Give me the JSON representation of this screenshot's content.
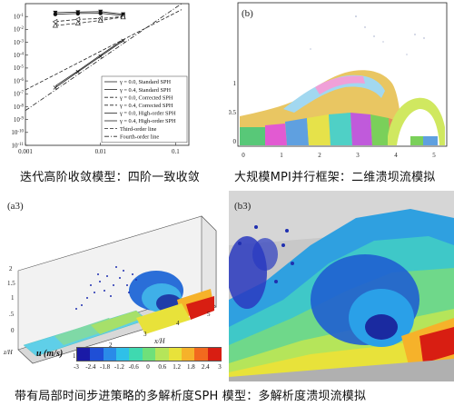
{
  "captions": {
    "top_left": "迭代高阶收敛模型：四阶一致收敛",
    "top_right": "大规模MPI并行框架：二维溃坝流模拟",
    "bottom": "带有局部时间步进策略的多解析度SPH 模型：多解析度溃坝流模拟"
  },
  "panels": {
    "b": {
      "label": "(b)",
      "x_ticks": [
        "0",
        "1",
        "2",
        "3",
        "4",
        "5"
      ],
      "y_ticks": [
        "0",
        "0.5",
        "1"
      ]
    },
    "a3": {
      "label": "(a3)",
      "y_ticks": [
        "0",
        ".5",
        "1",
        "1.5",
        "2"
      ],
      "x_ticks": [
        "1",
        "2",
        "3",
        "4",
        "5"
      ],
      "x_axis_label": "x/H",
      "z_axis_label": "z/H"
    },
    "b3": {
      "label": "(b3)"
    }
  },
  "colorbar": {
    "label": "u (m/s)",
    "ticks": [
      "-3",
      "-2.4",
      "-1.8",
      "-1.2",
      "-0.6",
      "0",
      "0.6",
      "1.2",
      "1.8",
      "2.4",
      "3"
    ],
    "colors": [
      "#1a1aa6",
      "#1f4fd6",
      "#2a8be8",
      "#2fc0e8",
      "#3fd9b0",
      "#6fe07a",
      "#b5e55a",
      "#e8e23a",
      "#f6b22a",
      "#f26a1e",
      "#d81e12"
    ]
  },
  "chart_data": {
    "type": "line",
    "log_x": true,
    "log_y": true,
    "x_ticks": [
      "0.001",
      "0.01",
      "0.1"
    ],
    "y_ticks": [
      "10^-1",
      "10^-2",
      "10^-3",
      "10^-4",
      "10^-5",
      "10^-6",
      "10^-7",
      "10^-8",
      "10^-9",
      "10^-10",
      "10^-11"
    ],
    "xlim": [
      0.001,
      0.15
    ],
    "ylim": [
      1e-11,
      1
    ],
    "legend_position": "bottom-right",
    "series": [
      {
        "name": "γ = 0.0, Standard SPH",
        "marker": "down-triangle-filled",
        "dash": "solid",
        "x": [
          0.0025,
          0.005,
          0.01,
          0.02
        ],
        "y": [
          0.2,
          0.22,
          0.24,
          0.15
        ]
      },
      {
        "name": "γ = 0.4, Standard SPH",
        "marker": "circle-filled",
        "dash": "solid",
        "x": [
          0.0025,
          0.005,
          0.01,
          0.02
        ],
        "y": [
          0.15,
          0.17,
          0.18,
          0.12
        ]
      },
      {
        "name": "γ = 0.0, Corrected SPH",
        "marker": "left-triangle-open",
        "dash": "dashed",
        "x": [
          0.0025,
          0.005,
          0.01,
          0.02
        ],
        "y": [
          0.04,
          0.06,
          0.07,
          0.1
        ]
      },
      {
        "name": "γ = 0.4, Corrected SPH",
        "marker": "up-triangle-open",
        "dash": "dashed",
        "x": [
          0.0025,
          0.005,
          0.01,
          0.02
        ],
        "y": [
          0.02,
          0.03,
          0.05,
          0.09
        ]
      },
      {
        "name": "γ = 0.0, High-order SPH",
        "marker": "none",
        "dash": "solid",
        "x": [
          0.0025,
          0.005,
          0.01,
          0.02
        ],
        "y": [
          4e-07,
          6e-06,
          0.0001,
          0.0016
        ]
      },
      {
        "name": "γ = 0.4, High-order SPH",
        "marker": "x",
        "dash": "solid",
        "x": [
          0.0025,
          0.005,
          0.01,
          0.02
        ],
        "y": [
          3e-07,
          5e-06,
          8e-05,
          0.0013
        ]
      },
      {
        "name": "Third-order line",
        "marker": "none",
        "dash": "dashed",
        "x": [
          0.001,
          0.12
        ],
        "y": [
          2e-07,
          0.34
        ]
      },
      {
        "name": "Fourth-order line",
        "marker": "none",
        "dash": "dashdot",
        "x": [
          0.001,
          0.12
        ],
        "y": [
          5e-09,
          1.0
        ]
      }
    ]
  }
}
